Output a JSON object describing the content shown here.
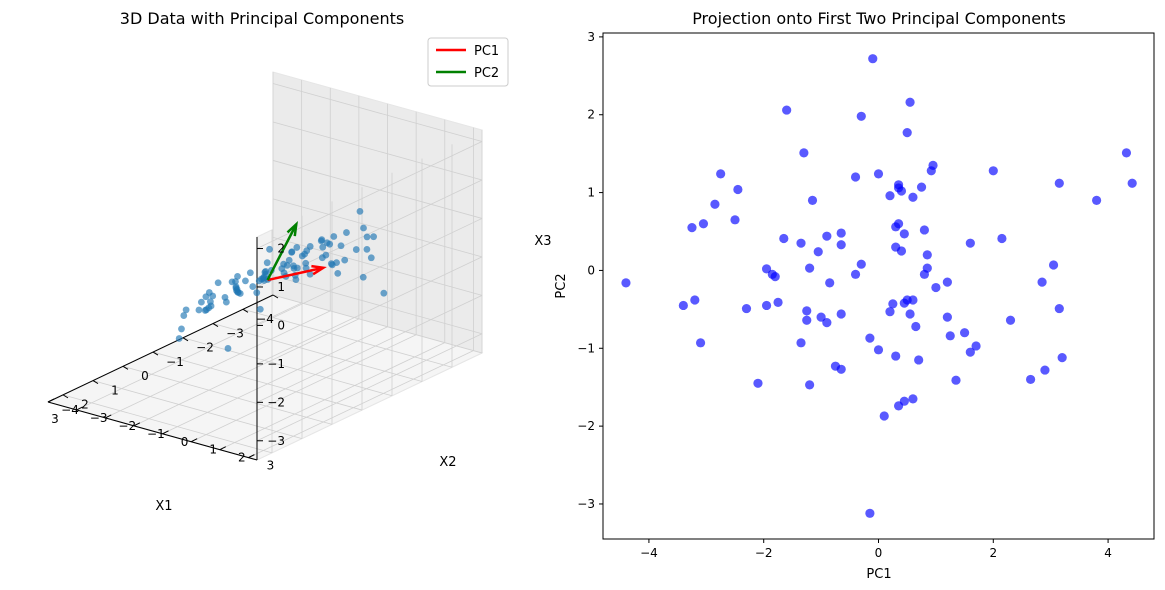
{
  "chart_data": [
    {
      "type": "scatter",
      "projection": "3d",
      "title": "3D Data with Principal Components",
      "xlabel": "X1",
      "ylabel": "X2",
      "zlabel": "X3",
      "xlim": [
        -4,
        3.5
      ],
      "ylim": [
        -4,
        3.3
      ],
      "zlim": [
        -3.5,
        2.3
      ],
      "x_ticks": [
        "−4",
        "−3",
        "−2",
        "−1",
        "0",
        "1",
        "2",
        "3"
      ],
      "y_ticks": [
        "−4",
        "−3",
        "−2",
        "−1",
        "0",
        "1",
        "2",
        "3"
      ],
      "z_ticks": [
        "−3",
        "−2",
        "−1",
        "0",
        "1",
        "2"
      ],
      "grid": true,
      "legend_position": "top-right",
      "point_color": "#1f77b4",
      "series": [
        {
          "name": "",
          "points": [
            [
              -3.6,
              -0.3,
              -1.4
            ],
            [
              -3.4,
              0.5,
              -2.3
            ],
            [
              -3.0,
              0.2,
              -1.8
            ],
            [
              -2.7,
              -0.6,
              -1.5
            ],
            [
              -2.6,
              0.9,
              -1.0
            ],
            [
              -2.4,
              -0.2,
              -0.6
            ],
            [
              -2.2,
              1.4,
              -0.2
            ],
            [
              -2.0,
              0.6,
              -0.9
            ],
            [
              -1.9,
              -1.0,
              -1.7
            ],
            [
              -1.7,
              0.3,
              -0.4
            ],
            [
              -1.6,
              1.8,
              0.1
            ],
            [
              -1.4,
              -0.5,
              -1.3
            ],
            [
              -1.3,
              0.9,
              -0.7
            ],
            [
              -1.1,
              2.2,
              0.6
            ],
            [
              -1.0,
              -1.3,
              -2.2
            ],
            [
              -0.9,
              0.1,
              -0.8
            ],
            [
              -0.8,
              1.2,
              -0.2
            ],
            [
              -0.7,
              -0.8,
              -1.0
            ],
            [
              -0.6,
              2.6,
              1.3
            ],
            [
              -0.5,
              0.4,
              -0.6
            ],
            [
              -0.4,
              -1.8,
              -3.1
            ],
            [
              -0.3,
              1.6,
              0.0
            ],
            [
              -0.2,
              -0.2,
              -0.9
            ],
            [
              -0.1,
              0.8,
              -0.3
            ],
            [
              0.0,
              -1.1,
              -1.2
            ],
            [
              0.1,
              2.0,
              0.7
            ],
            [
              0.2,
              0.0,
              -0.7
            ],
            [
              0.3,
              1.0,
              -0.1
            ],
            [
              0.4,
              -0.6,
              -1.1
            ],
            [
              0.5,
              2.4,
              0.9
            ],
            [
              0.6,
              0.5,
              -0.4
            ],
            [
              0.7,
              -1.4,
              -1.6
            ],
            [
              0.8,
              1.4,
              0.2
            ],
            [
              0.9,
              -0.1,
              -0.8
            ],
            [
              1.0,
              0.9,
              -0.2
            ],
            [
              1.1,
              -0.9,
              -1.3
            ],
            [
              1.2,
              2.1,
              0.8
            ],
            [
              1.3,
              0.3,
              -0.5
            ],
            [
              1.4,
              1.6,
              0.3
            ],
            [
              1.5,
              -0.4,
              -1.0
            ],
            [
              1.6,
              2.7,
              1.2
            ],
            [
              1.7,
              0.7,
              -0.3
            ],
            [
              1.8,
              -1.2,
              -1.9
            ],
            [
              1.9,
              1.9,
              0.5
            ],
            [
              2.0,
              0.1,
              -0.6
            ],
            [
              2.1,
              1.1,
              0.0
            ],
            [
              2.2,
              -0.7,
              -1.4
            ],
            [
              2.3,
              2.4,
              1.0
            ],
            [
              2.4,
              0.6,
              -0.2
            ],
            [
              2.5,
              1.5,
              0.4
            ],
            [
              2.6,
              -0.2,
              -0.8
            ],
            [
              2.7,
              2.9,
              1.6
            ],
            [
              2.8,
              0.9,
              0.1
            ],
            [
              2.9,
              1.8,
              0.6
            ],
            [
              3.0,
              0.3,
              -0.4
            ],
            [
              3.1,
              2.2,
              0.9
            ],
            [
              3.2,
              1.2,
              0.2
            ],
            [
              -1.5,
              0.6,
              -0.3
            ],
            [
              -0.9,
              -0.3,
              -1.1
            ],
            [
              -0.3,
              0.9,
              -0.1
            ],
            [
              0.3,
              -0.2,
              -0.9
            ],
            [
              0.9,
              1.7,
              0.4
            ],
            [
              1.5,
              0.8,
              -0.1
            ],
            [
              -2.3,
              0.0,
              -1.2
            ],
            [
              -1.2,
              1.5,
              0.3
            ],
            [
              -0.5,
              -0.9,
              -1.5
            ],
            [
              0.5,
              1.1,
              -0.2
            ],
            [
              1.1,
              0.2,
              -0.7
            ],
            [
              2.1,
              1.6,
              0.5
            ],
            [
              -1.8,
              -0.4,
              -1.4
            ],
            [
              -0.7,
              0.6,
              -0.5
            ],
            [
              0.1,
              1.4,
              0.2
            ],
            [
              0.8,
              -0.6,
              -1.2
            ],
            [
              1.8,
              0.4,
              -0.5
            ],
            [
              2.6,
              1.0,
              0.3
            ],
            [
              -3.2,
              -0.9,
              -2.0
            ],
            [
              -2.1,
              0.9,
              -0.6
            ],
            [
              -1.0,
              0.3,
              -0.8
            ],
            [
              0.0,
              0.5,
              -0.4
            ],
            [
              1.3,
              1.3,
              0.1
            ],
            [
              2.3,
              0.1,
              -0.5
            ],
            [
              -1.4,
              1.1,
              -0.2
            ],
            [
              0.6,
              2.0,
              0.6
            ],
            [
              1.6,
              -0.5,
              -1.1
            ],
            [
              -0.2,
              -0.5,
              -1.0
            ],
            [
              0.4,
              0.3,
              -0.6
            ],
            [
              1.0,
              1.9,
              0.7
            ],
            [
              -0.6,
              1.3,
              0.1
            ],
            [
              2.0,
              -0.3,
              -0.9
            ],
            [
              0.2,
              1.7,
              0.5
            ]
          ]
        }
      ],
      "vectors": [
        {
          "name": "PC1",
          "color": "#ff0000",
          "start": [
            0.0,
            0.0,
            -0.8
          ],
          "end": [
            -3.1,
            -1.3,
            -1.9
          ]
        },
        {
          "name": "PC2",
          "color": "#008000",
          "start": [
            0.0,
            0.0,
            -0.8
          ],
          "end": [
            -0.1,
            0.9,
            0.8
          ]
        }
      ]
    },
    {
      "type": "scatter",
      "title": "Projection onto First Two Principal Components",
      "xlabel": "PC1",
      "ylabel": "PC2",
      "xlim": [
        -4.8,
        4.8
      ],
      "ylim": [
        -3.45,
        3.05
      ],
      "x_ticks": [
        -4,
        -2,
        0,
        2,
        4
      ],
      "y_ticks": [
        -3,
        -2,
        -1,
        0,
        1,
        2,
        3
      ],
      "grid": false,
      "point_color": "#0000ff",
      "series": [
        {
          "name": "",
          "points": [
            [
              -0.1,
              2.72
            ],
            [
              0.55,
              2.16
            ],
            [
              -1.6,
              2.06
            ],
            [
              -0.3,
              1.98
            ],
            [
              0.5,
              1.77
            ],
            [
              4.32,
              1.51
            ],
            [
              -1.3,
              1.51
            ],
            [
              0.95,
              1.35
            ],
            [
              0.92,
              1.28
            ],
            [
              2.0,
              1.28
            ],
            [
              -2.75,
              1.24
            ],
            [
              0.0,
              1.24
            ],
            [
              -0.4,
              1.2
            ],
            [
              3.15,
              1.12
            ],
            [
              4.42,
              1.12
            ],
            [
              0.35,
              1.1
            ],
            [
              0.35,
              1.06
            ],
            [
              0.75,
              1.07
            ],
            [
              -2.45,
              1.04
            ],
            [
              0.4,
              1.02
            ],
            [
              0.2,
              0.96
            ],
            [
              0.6,
              0.94
            ],
            [
              -1.15,
              0.9
            ],
            [
              -2.85,
              0.85
            ],
            [
              3.8,
              0.9
            ],
            [
              -2.5,
              0.65
            ],
            [
              -3.05,
              0.6
            ],
            [
              -3.25,
              0.55
            ],
            [
              0.35,
              0.6
            ],
            [
              0.3,
              0.56
            ],
            [
              0.8,
              0.52
            ],
            [
              -0.65,
              0.48
            ],
            [
              0.45,
              0.47
            ],
            [
              -0.9,
              0.44
            ],
            [
              -1.65,
              0.41
            ],
            [
              2.15,
              0.41
            ],
            [
              -1.35,
              0.35
            ],
            [
              1.6,
              0.35
            ],
            [
              -0.65,
              0.33
            ],
            [
              0.3,
              0.3
            ],
            [
              0.4,
              0.25
            ],
            [
              -1.05,
              0.24
            ],
            [
              0.85,
              0.2
            ],
            [
              -0.3,
              0.08
            ],
            [
              3.05,
              0.07
            ],
            [
              -1.2,
              0.03
            ],
            [
              0.85,
              0.03
            ],
            [
              -1.95,
              0.02
            ],
            [
              -1.85,
              -0.05
            ],
            [
              -1.8,
              -0.08
            ],
            [
              -0.4,
              -0.05
            ],
            [
              0.8,
              -0.05
            ],
            [
              -0.85,
              -0.16
            ],
            [
              1.2,
              -0.15
            ],
            [
              2.85,
              -0.15
            ],
            [
              -4.4,
              -0.16
            ],
            [
              1.0,
              -0.22
            ],
            [
              -3.2,
              -0.38
            ],
            [
              -1.75,
              -0.41
            ],
            [
              0.6,
              -0.38
            ],
            [
              0.5,
              -0.38
            ],
            [
              -3.4,
              -0.45
            ],
            [
              -1.95,
              -0.45
            ],
            [
              0.25,
              -0.43
            ],
            [
              0.45,
              -0.42
            ],
            [
              -2.3,
              -0.49
            ],
            [
              3.15,
              -0.49
            ],
            [
              -1.25,
              -0.52
            ],
            [
              0.2,
              -0.53
            ],
            [
              0.55,
              -0.56
            ],
            [
              -0.65,
              -0.56
            ],
            [
              1.2,
              -0.6
            ],
            [
              -1.0,
              -0.6
            ],
            [
              -1.25,
              -0.64
            ],
            [
              2.3,
              -0.64
            ],
            [
              -0.9,
              -0.67
            ],
            [
              0.65,
              -0.72
            ],
            [
              1.5,
              -0.8
            ],
            [
              1.25,
              -0.84
            ],
            [
              -0.15,
              -0.87
            ],
            [
              -3.1,
              -0.93
            ],
            [
              -1.35,
              -0.93
            ],
            [
              1.7,
              -0.97
            ],
            [
              0.0,
              -1.02
            ],
            [
              1.6,
              -1.05
            ],
            [
              0.3,
              -1.1
            ],
            [
              3.2,
              -1.12
            ],
            [
              0.7,
              -1.15
            ],
            [
              -0.75,
              -1.23
            ],
            [
              -0.65,
              -1.27
            ],
            [
              2.9,
              -1.28
            ],
            [
              1.35,
              -1.41
            ],
            [
              2.65,
              -1.4
            ],
            [
              -2.1,
              -1.45
            ],
            [
              -1.2,
              -1.47
            ],
            [
              0.45,
              -1.68
            ],
            [
              0.6,
              -1.65
            ],
            [
              0.35,
              -1.74
            ],
            [
              0.1,
              -1.87
            ],
            [
              -0.15,
              -3.12
            ]
          ]
        }
      ]
    }
  ],
  "legend": [
    {
      "label": "PC1",
      "color": "#ff0000"
    },
    {
      "label": "PC2",
      "color": "#008000"
    }
  ]
}
